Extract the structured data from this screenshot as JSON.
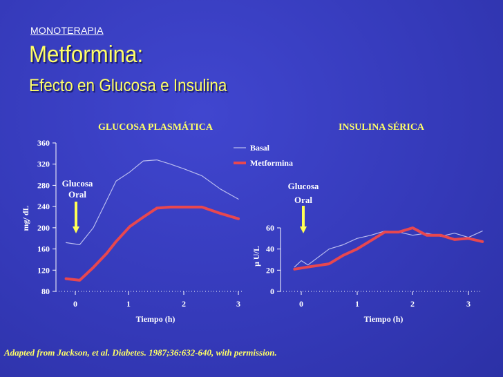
{
  "header": {
    "kicker": "MONOTERAPIA",
    "title": "Metformina:",
    "subtitle": "Efecto en Glucosa e Insulina"
  },
  "footer": {
    "citation": "Adapted from Jackson, et al. Diabetes. 1987;36:632-640, with permission."
  },
  "colors": {
    "background": "#3a3fbf",
    "title": "#ffff66",
    "basal_line": "#b9bcef",
    "metformina_line": "#e8474f",
    "arrow": "#ffff55"
  },
  "chart_data": [
    {
      "type": "line",
      "title": "GLUCOSA PLASMÁTICA",
      "xlabel": "Tiempo (h)",
      "ylabel": "mg/ dL",
      "xlim": [
        -0.2,
        3.05
      ],
      "ylim": [
        80,
        360
      ],
      "xticks": [
        "0",
        "1",
        "2",
        "3"
      ],
      "yticks": [
        "80",
        "120",
        "160",
        "200",
        "240",
        "280",
        "320",
        "360"
      ],
      "annotation": "Glucosa Oral",
      "series": [
        {
          "name": "Basal",
          "x": [
            -0.17,
            0.08,
            0.33,
            0.58,
            0.75,
            1.0,
            1.25,
            1.5,
            1.75,
            2.0,
            2.33,
            2.67,
            3.0
          ],
          "y": [
            172,
            168,
            200,
            252,
            288,
            305,
            326,
            328,
            320,
            311,
            298,
            273,
            254
          ]
        },
        {
          "name": "Metformina",
          "x": [
            -0.17,
            0.08,
            0.33,
            0.58,
            0.75,
            1.0,
            1.25,
            1.5,
            1.75,
            2.0,
            2.33,
            2.67,
            3.0
          ],
          "y": [
            104,
            101,
            125,
            152,
            174,
            202,
            220,
            237,
            239,
            239,
            239,
            227,
            217
          ]
        }
      ],
      "legend": {
        "position": "top-right",
        "entries": [
          "Basal",
          "Metformina"
        ]
      }
    },
    {
      "type": "line",
      "title": "INSULINA SÉRICA",
      "xlabel": "Tiempo (h)",
      "ylabel": "μ U/L",
      "xlim": [
        -0.1,
        3.2
      ],
      "ylim": [
        0,
        60
      ],
      "xticks": [
        "0",
        "1",
        "2",
        "3"
      ],
      "yticks": [
        "0",
        "20",
        "40",
        "60"
      ],
      "annotation": "Glucosa Oral",
      "series": [
        {
          "name": "Basal",
          "x": [
            -0.12,
            0.0,
            0.12,
            0.5,
            0.75,
            1.0,
            1.25,
            1.5,
            1.75,
            2.0,
            2.25,
            2.5,
            2.75,
            3.0,
            3.25
          ],
          "y": [
            23,
            29,
            25,
            40,
            44,
            50,
            53,
            57,
            56,
            53,
            55,
            52,
            55,
            51,
            57
          ]
        },
        {
          "name": "Metformina",
          "x": [
            -0.12,
            0.12,
            0.5,
            0.75,
            1.0,
            1.25,
            1.5,
            1.75,
            2.0,
            2.25,
            2.5,
            2.75,
            3.0,
            3.25
          ],
          "y": [
            21,
            23,
            26,
            34,
            40,
            48,
            56,
            56,
            60,
            53,
            53,
            49,
            50,
            47
          ]
        }
      ]
    }
  ]
}
